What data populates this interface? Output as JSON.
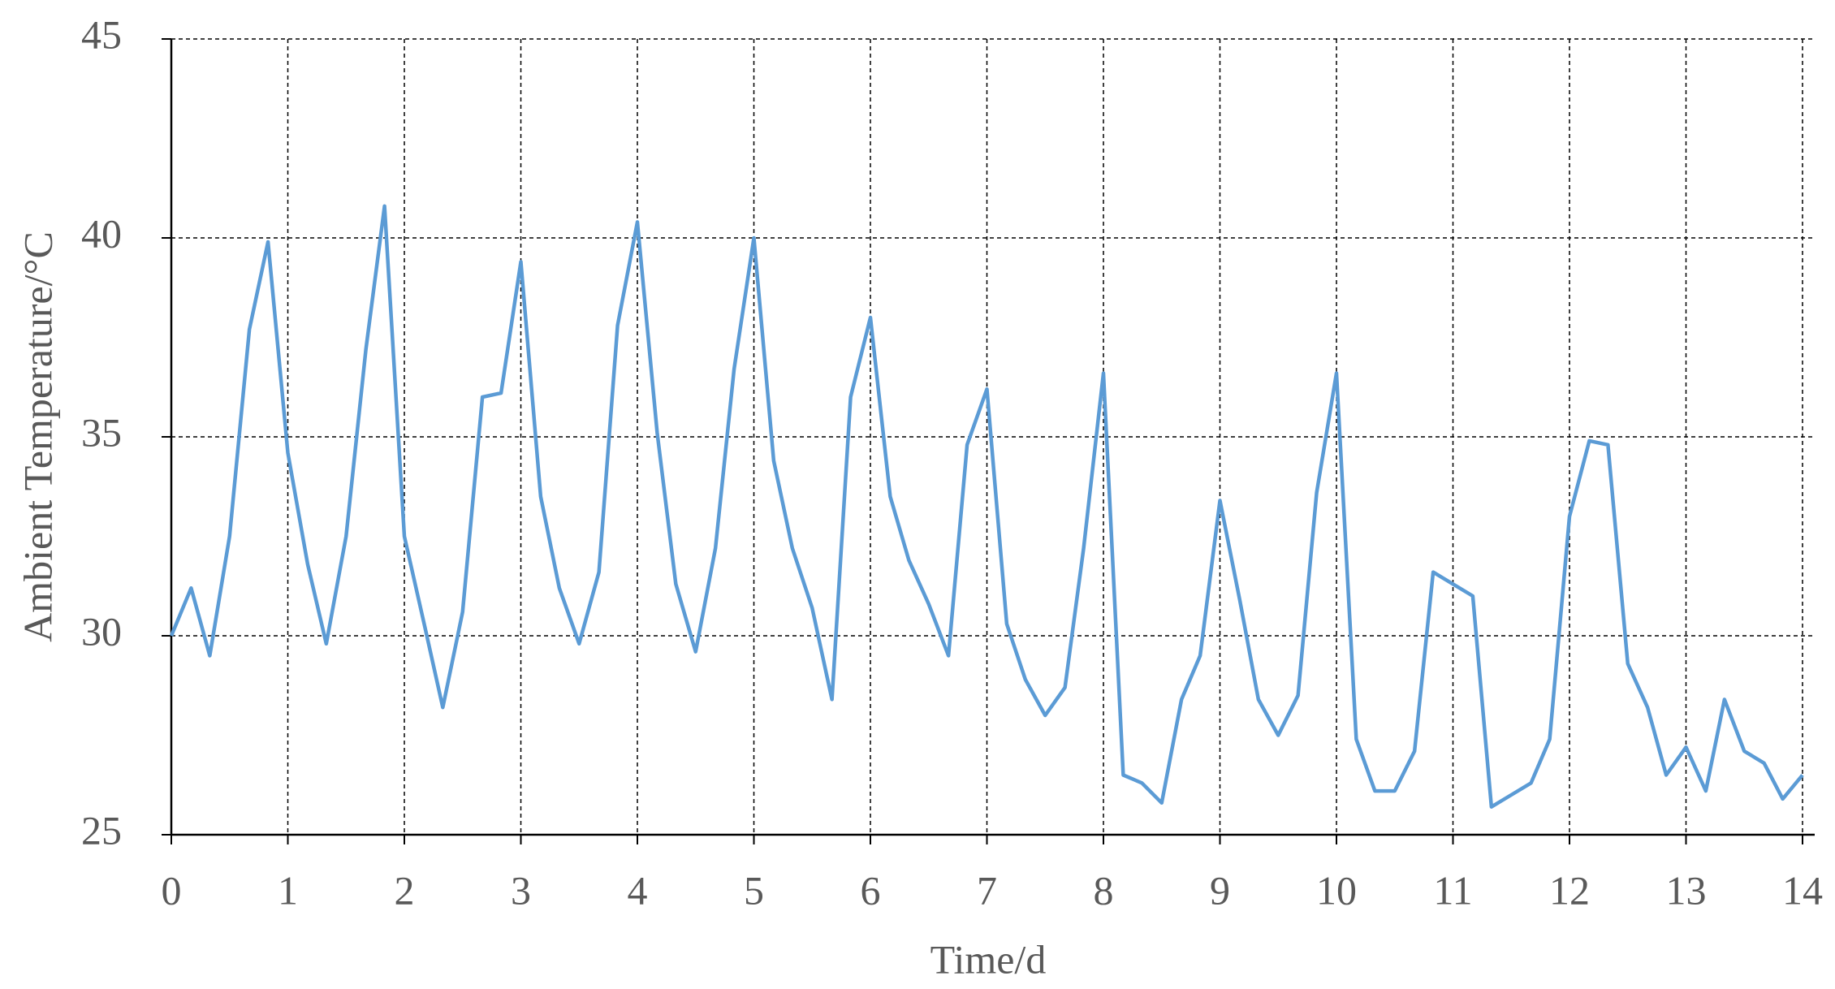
{
  "chart_data": {
    "type": "line",
    "xlabel": "Time/d",
    "ylabel": "Ambient Temperature/°C",
    "x": [
      0,
      0.17,
      0.33,
      0.5,
      0.67,
      0.83,
      1,
      1.17,
      1.33,
      1.5,
      1.67,
      1.83,
      2,
      2.17,
      2.33,
      2.5,
      2.67,
      2.83,
      3,
      3.17,
      3.33,
      3.5,
      3.67,
      3.83,
      4,
      4.17,
      4.33,
      4.5,
      4.67,
      4.83,
      5,
      5.17,
      5.33,
      5.5,
      5.67,
      5.83,
      6,
      6.17,
      6.33,
      6.5,
      6.67,
      6.83,
      7,
      7.17,
      7.33,
      7.5,
      7.67,
      7.83,
      8,
      8.17,
      8.33,
      8.5,
      8.67,
      8.83,
      9,
      9.17,
      9.33,
      9.5,
      9.67,
      9.83,
      10,
      10.17,
      10.33,
      10.5,
      10.67,
      10.83,
      11,
      11.17,
      11.33,
      11.5,
      11.67,
      11.83,
      12,
      12.17,
      12.33,
      12.5,
      12.67,
      12.83,
      13,
      13.17,
      13.33,
      13.5,
      13.67,
      13.83,
      14
    ],
    "series": [
      {
        "name": "Ambient Temperature",
        "color": "#5b9bd5",
        "values": [
          30.0,
          31.2,
          29.5,
          32.5,
          37.7,
          39.9,
          34.6,
          31.8,
          29.8,
          32.5,
          37.2,
          40.8,
          32.5,
          30.3,
          28.2,
          30.6,
          36.0,
          36.1,
          39.4,
          33.5,
          31.2,
          29.8,
          31.6,
          37.8,
          40.4,
          35.1,
          31.3,
          29.6,
          32.2,
          36.7,
          40.0,
          34.4,
          32.2,
          30.7,
          28.4,
          36.0,
          38.0,
          33.5,
          31.9,
          30.8,
          29.5,
          34.8,
          36.2,
          30.3,
          28.9,
          28.0,
          28.7,
          32.2,
          36.6,
          26.5,
          26.3,
          25.8,
          28.4,
          29.5,
          33.4,
          30.9,
          28.4,
          27.5,
          28.5,
          33.6,
          36.6,
          27.4,
          26.1,
          26.1,
          27.1,
          31.6,
          31.3,
          31.0,
          25.7,
          26.0,
          26.3,
          27.4,
          33.0,
          34.9,
          34.8,
          29.3,
          28.2,
          26.5,
          27.2,
          26.1,
          28.4,
          27.1,
          26.8,
          25.9,
          26.5
        ]
      }
    ],
    "xlim": [
      0,
      14
    ],
    "xticks": [
      0,
      1,
      2,
      3,
      4,
      5,
      6,
      7,
      8,
      9,
      10,
      11,
      12,
      13,
      14
    ],
    "ylim": [
      25,
      45
    ],
    "yticks": [
      25,
      30,
      35,
      40,
      45
    ],
    "grid": true
  }
}
